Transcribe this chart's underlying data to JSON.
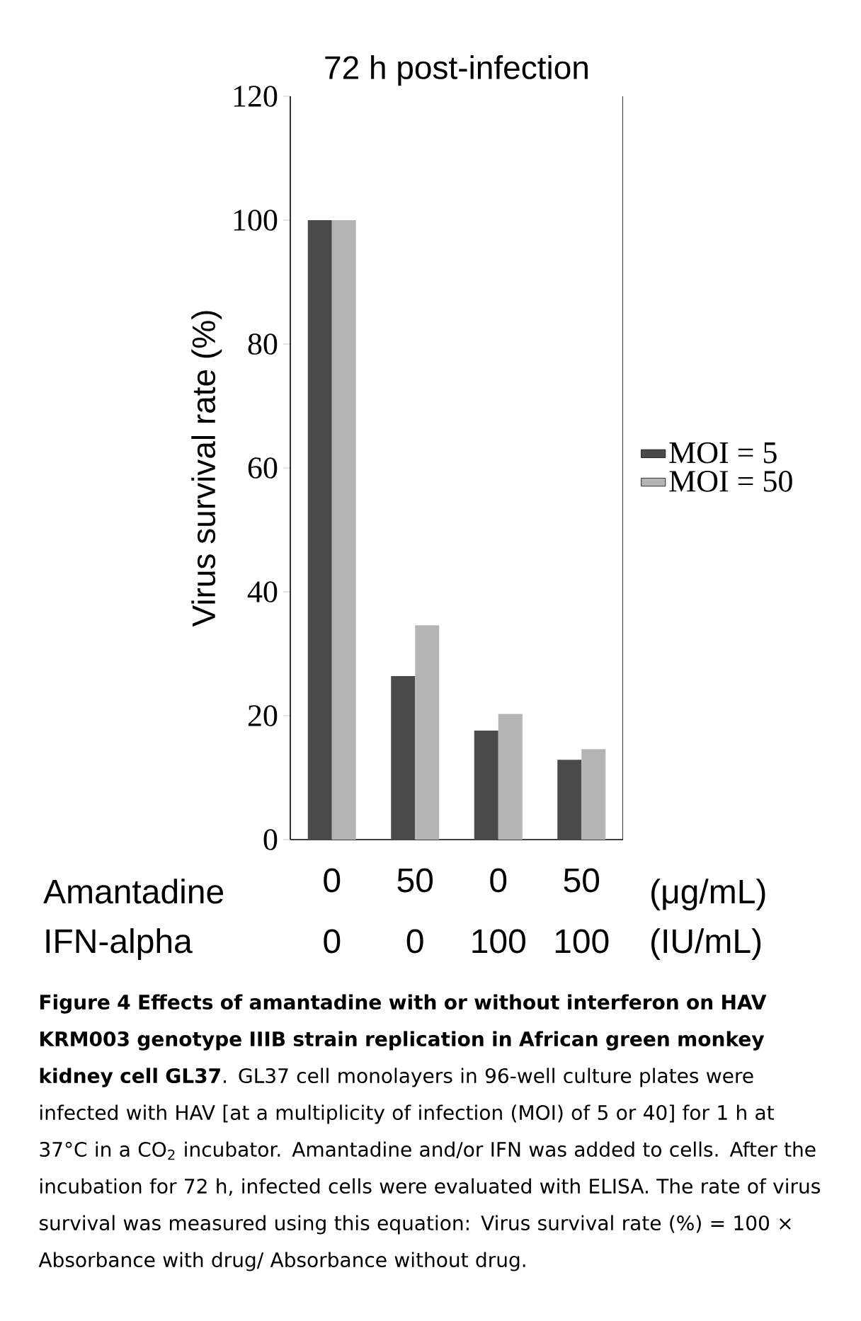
{
  "chart_data": {
    "type": "bar",
    "title": "72 h post-infection",
    "ylabel": "Virus survival rate (%)",
    "categories": [
      "0",
      "50",
      "0",
      "50"
    ],
    "series": [
      {
        "name": "MOI = 5",
        "color": "#4a4a4a",
        "values": [
          100,
          26.4,
          17.6,
          12.9
        ]
      },
      {
        "name": "MOI = 50",
        "color": "#b4b4b4",
        "values": [
          100,
          34.6,
          20.3,
          14.6
        ]
      }
    ],
    "ylim": [
      0,
      120
    ],
    "yticks": [
      0,
      20,
      40,
      60,
      80,
      100,
      120
    ],
    "grid": false,
    "legend": "right",
    "annotations": [
      "Amantadine",
      "(μg/mL)",
      "IFN-alpha",
      "0",
      "0",
      "100",
      "100",
      "(IU/mL)",
      "**Figure 4 Effects of amantadine with or without interferon on HAV KRM003 genotype IIIB strain replication in African green monkey kidney cell GL37**. GL37 cell monolayers in 96-well culture plates were infected with HAV [at a multiplicity of infection (MOI) of 5 or 40] for 1 h at 37°C in a CO$_{2}$ incubator. Amantadine and/or IFN was added to cells. After the incubation for 72 h, infected cells were evaluated with ELISA. The rate of virus survival was measured using this equation: Virus survival rate (%) = 100 × Absorbance with drug/ Absorbance without drug."
    ]
  }
}
